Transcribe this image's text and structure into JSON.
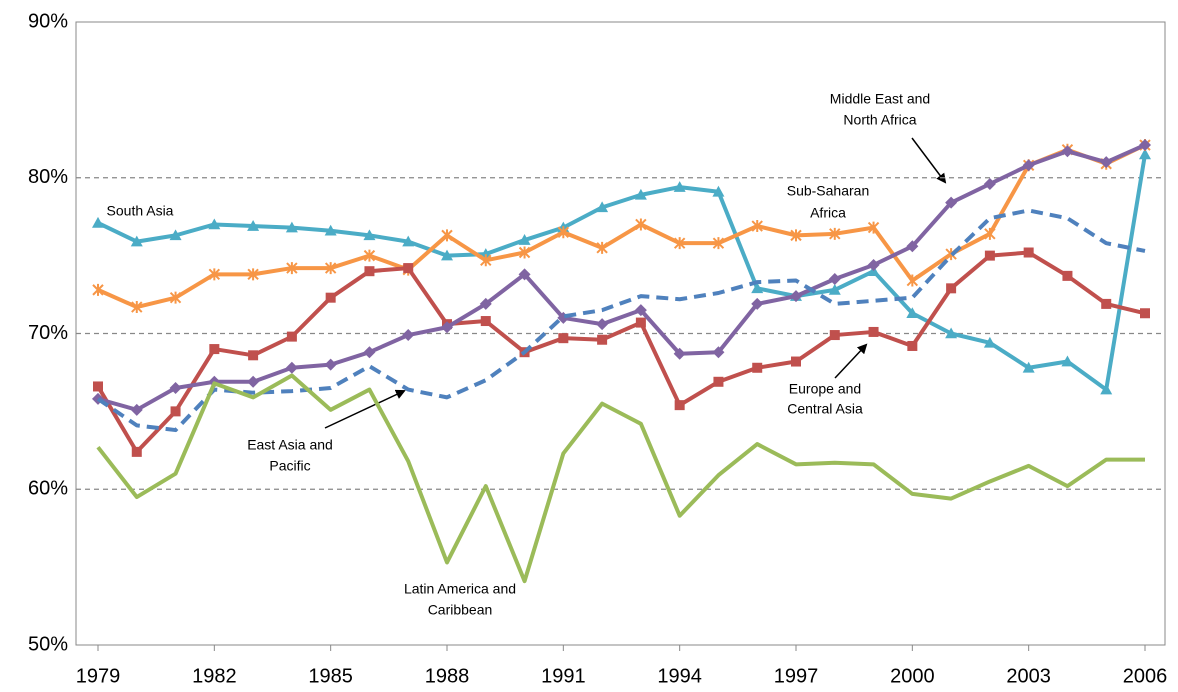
{
  "chart_data": {
    "type": "line",
    "x": [
      1979,
      1980,
      1981,
      1982,
      1983,
      1984,
      1985,
      1986,
      1987,
      1988,
      1989,
      1990,
      1991,
      1992,
      1993,
      1994,
      1995,
      1996,
      1997,
      1998,
      1999,
      2000,
      2001,
      2002,
      2003,
      2004,
      2005,
      2006
    ],
    "xlim": [
      1979,
      2006
    ],
    "xticks": [
      1979,
      1982,
      1985,
      1988,
      1991,
      1994,
      1997,
      2000,
      2003,
      2006
    ],
    "ylim": [
      50,
      90
    ],
    "yticks": [
      {
        "value": 50,
        "label": "50%"
      },
      {
        "value": 60,
        "label": "60%"
      },
      {
        "value": 70,
        "label": "70%"
      },
      {
        "value": 80,
        "label": "80%"
      },
      {
        "value": 90,
        "label": "90%"
      }
    ],
    "grid": true,
    "series": [
      {
        "label": [
          "South Asia"
        ],
        "color": "#4bacc6",
        "marker": "triangle",
        "values": [
          77.1,
          75.9,
          76.3,
          77.0,
          76.9,
          76.8,
          76.6,
          76.3,
          75.9,
          75.0,
          75.1,
          76.0,
          76.8,
          78.1,
          78.9,
          79.4,
          79.1,
          72.9,
          72.4,
          72.8,
          74.0,
          71.3,
          70.0,
          69.4,
          67.8,
          68.2,
          66.4,
          81.5
        ]
      },
      {
        "label": [
          "Sub-Saharan",
          "Africa"
        ],
        "color": "#f79646",
        "marker": "star",
        "values": [
          72.8,
          71.7,
          72.3,
          73.8,
          73.8,
          74.2,
          74.2,
          75.0,
          74.1,
          76.3,
          74.7,
          75.2,
          76.5,
          75.5,
          77.0,
          75.8,
          75.8,
          76.9,
          76.3,
          76.4,
          76.8,
          73.4,
          75.1,
          76.4,
          80.8,
          81.8,
          80.9,
          82.1
        ]
      },
      {
        "label": [
          "Europe and",
          "Central Asia"
        ],
        "color": "#c0504d",
        "marker": "square",
        "values": [
          66.6,
          62.4,
          65.0,
          69.0,
          68.6,
          69.8,
          72.3,
          74.0,
          74.2,
          70.6,
          70.8,
          68.8,
          69.7,
          69.6,
          70.7,
          65.4,
          66.9,
          67.8,
          68.2,
          69.9,
          70.1,
          69.2,
          72.9,
          75.0,
          75.2,
          73.7,
          71.9,
          71.3
        ]
      },
      {
        "label": [
          "Middle East and",
          "North Africa"
        ],
        "color": "#8064a2",
        "marker": "diamond",
        "values": [
          65.8,
          65.1,
          66.5,
          66.9,
          66.9,
          67.8,
          68.0,
          68.8,
          69.9,
          70.4,
          71.9,
          73.8,
          71.0,
          70.6,
          71.5,
          68.7,
          68.8,
          71.9,
          72.4,
          73.5,
          74.4,
          75.6,
          78.4,
          79.6,
          80.8,
          81.7,
          81.0,
          82.1
        ]
      },
      {
        "label": [
          "East Asia and",
          "Pacific"
        ],
        "color": "#4f81bd",
        "marker": "none",
        "dashed": true,
        "values": [
          65.8,
          64.1,
          63.8,
          66.4,
          66.2,
          66.3,
          66.5,
          67.9,
          66.4,
          65.9,
          67.0,
          68.8,
          71.1,
          71.5,
          72.4,
          72.2,
          72.6,
          73.3,
          73.4,
          71.9,
          72.1,
          72.3,
          75.0,
          77.4,
          77.9,
          77.4,
          75.8,
          75.3
        ]
      },
      {
        "label": [
          "Latin America and",
          "Caribbean"
        ],
        "color": "#9bbb59",
        "marker": "none",
        "values": [
          62.7,
          59.5,
          61.0,
          66.8,
          65.9,
          67.3,
          65.1,
          66.4,
          61.8,
          55.3,
          60.2,
          54.1,
          62.3,
          65.5,
          64.2,
          58.3,
          60.9,
          62.9,
          61.6,
          61.7,
          61.6,
          59.7,
          59.4,
          60.5,
          61.5,
          60.2,
          61.9,
          61.9
        ]
      }
    ]
  }
}
